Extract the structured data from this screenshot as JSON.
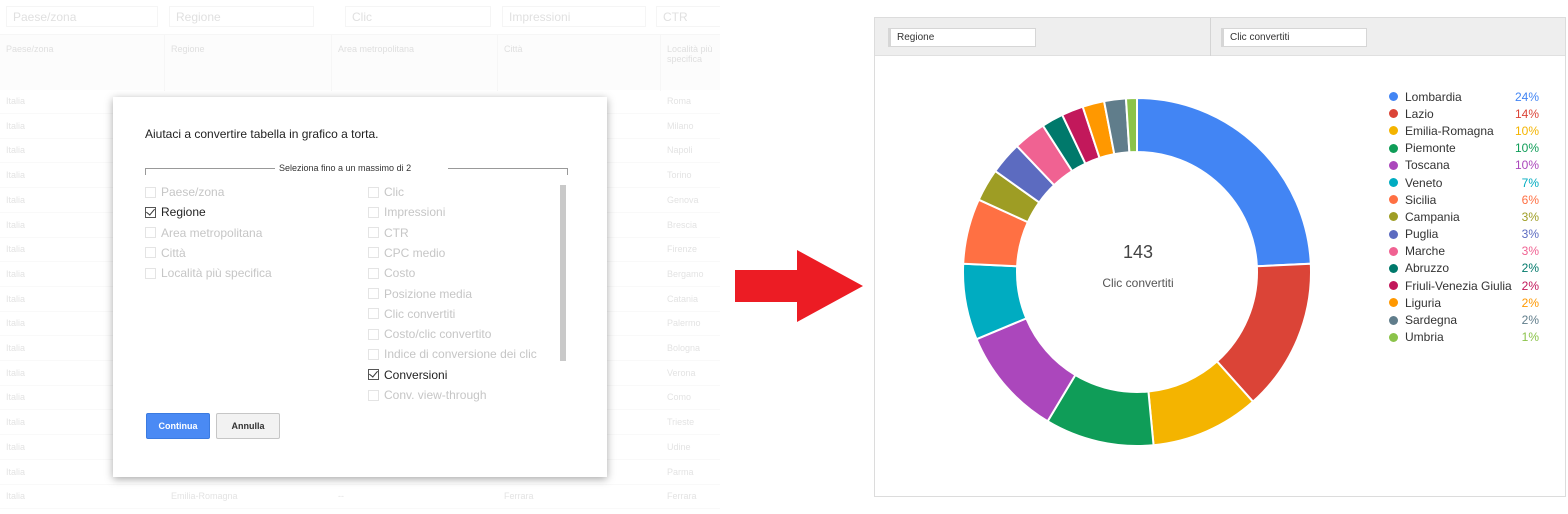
{
  "table": {
    "filters": [
      "Paese/zona",
      "Regione",
      "Clic",
      "Impressioni",
      "CTR"
    ],
    "headers": [
      "Paese/zona",
      "Regione",
      "Area metropolitana",
      "Città",
      "Località più specifica"
    ],
    "rows": [
      [
        "Italia",
        "",
        "",
        "",
        "Roma"
      ],
      [
        "Italia",
        "",
        "",
        "",
        "Milano"
      ],
      [
        "Italia",
        "",
        "",
        "",
        "Napoli"
      ],
      [
        "Italia",
        "",
        "",
        "",
        "Torino"
      ],
      [
        "Italia",
        "",
        "",
        "",
        "Genova"
      ],
      [
        "Italia",
        "",
        "",
        "",
        "Brescia"
      ],
      [
        "Italia",
        "",
        "",
        "",
        "Firenze"
      ],
      [
        "Italia",
        "",
        "",
        "",
        "Bergamo"
      ],
      [
        "Italia",
        "",
        "",
        "",
        "Catania"
      ],
      [
        "Italia",
        "",
        "",
        "",
        "Palermo"
      ],
      [
        "Italia",
        "",
        "",
        "",
        "Bologna"
      ],
      [
        "Italia",
        "",
        "",
        "",
        "Verona"
      ],
      [
        "Italia",
        "",
        "",
        "",
        "Como"
      ],
      [
        "Italia",
        "",
        "",
        "",
        "Trieste"
      ],
      [
        "Italia",
        "",
        "",
        "",
        "Udine"
      ],
      [
        "Italia",
        "",
        "",
        "",
        "Parma"
      ],
      [
        "Italia",
        "Emilia-Romagna",
        "--",
        "Ferrara",
        "Ferrara"
      ]
    ]
  },
  "dialog": {
    "title": "Aiutaci a convertire tabella in grafico a torta.",
    "legend": "Seleziona fino a un massimo di 2",
    "left_options": [
      {
        "label": "Paese/zona",
        "checked": false
      },
      {
        "label": "Regione",
        "checked": true
      },
      {
        "label": "Area metropolitana",
        "checked": false
      },
      {
        "label": "Città",
        "checked": false
      },
      {
        "label": "Località più specifica",
        "checked": false
      }
    ],
    "right_options": [
      {
        "label": "Clic",
        "checked": false
      },
      {
        "label": "Impressioni",
        "checked": false
      },
      {
        "label": "CTR",
        "checked": false
      },
      {
        "label": "CPC medio",
        "checked": false
      },
      {
        "label": "Costo",
        "checked": false
      },
      {
        "label": "Posizione media",
        "checked": false
      },
      {
        "label": "Clic convertiti",
        "checked": false
      },
      {
        "label": "Costo/clic convertito",
        "checked": false
      },
      {
        "label": "Indice di conversione dei clic",
        "checked": false
      },
      {
        "label": "Conversioni",
        "checked": true
      },
      {
        "label": "Conv. view-through",
        "checked": false
      }
    ],
    "continue_label": "Continua",
    "cancel_label": "Annulla"
  },
  "arrow_color": "#ec1c24",
  "chart_header": {
    "dimension": "Regione",
    "metric": "Clic convertiti"
  },
  "chart_data": {
    "type": "pie",
    "donut": true,
    "center_total": "143",
    "center_label": "Clic convertiti",
    "legend_position": "right",
    "slices": [
      {
        "name": "Lombardia",
        "value": 24,
        "label": "24%",
        "color": "#4285f4"
      },
      {
        "name": "Lazio",
        "value": 14,
        "label": "14%",
        "color": "#db4437"
      },
      {
        "name": "Emilia-Romagna",
        "value": 10,
        "label": "10%",
        "color": "#f4b400"
      },
      {
        "name": "Piemonte",
        "value": 10,
        "label": "10%",
        "color": "#0f9d58"
      },
      {
        "name": "Toscana",
        "value": 10,
        "label": "10%",
        "color": "#ab47bc"
      },
      {
        "name": "Veneto",
        "value": 7,
        "label": "7%",
        "color": "#00acc1"
      },
      {
        "name": "Sicilia",
        "value": 6,
        "label": "6%",
        "color": "#ff7043"
      },
      {
        "name": "Campania",
        "value": 3,
        "label": "3%",
        "color": "#9e9d24"
      },
      {
        "name": "Puglia",
        "value": 3,
        "label": "3%",
        "color": "#5c6bc0"
      },
      {
        "name": "Marche",
        "value": 3,
        "label": "3%",
        "color": "#f06292"
      },
      {
        "name": "Abruzzo",
        "value": 2,
        "label": "2%",
        "color": "#00796b"
      },
      {
        "name": "Friuli-Venezia Giulia",
        "value": 2,
        "label": "2%",
        "color": "#c2185b"
      },
      {
        "name": "Liguria",
        "value": 2,
        "label": "2%",
        "color": "#ff9800"
      },
      {
        "name": "Sardegna",
        "value": 2,
        "label": "2%",
        "color": "#607d8b"
      },
      {
        "name": "Umbria",
        "value": 1,
        "label": "1%",
        "color": "#8bc34a"
      }
    ]
  }
}
